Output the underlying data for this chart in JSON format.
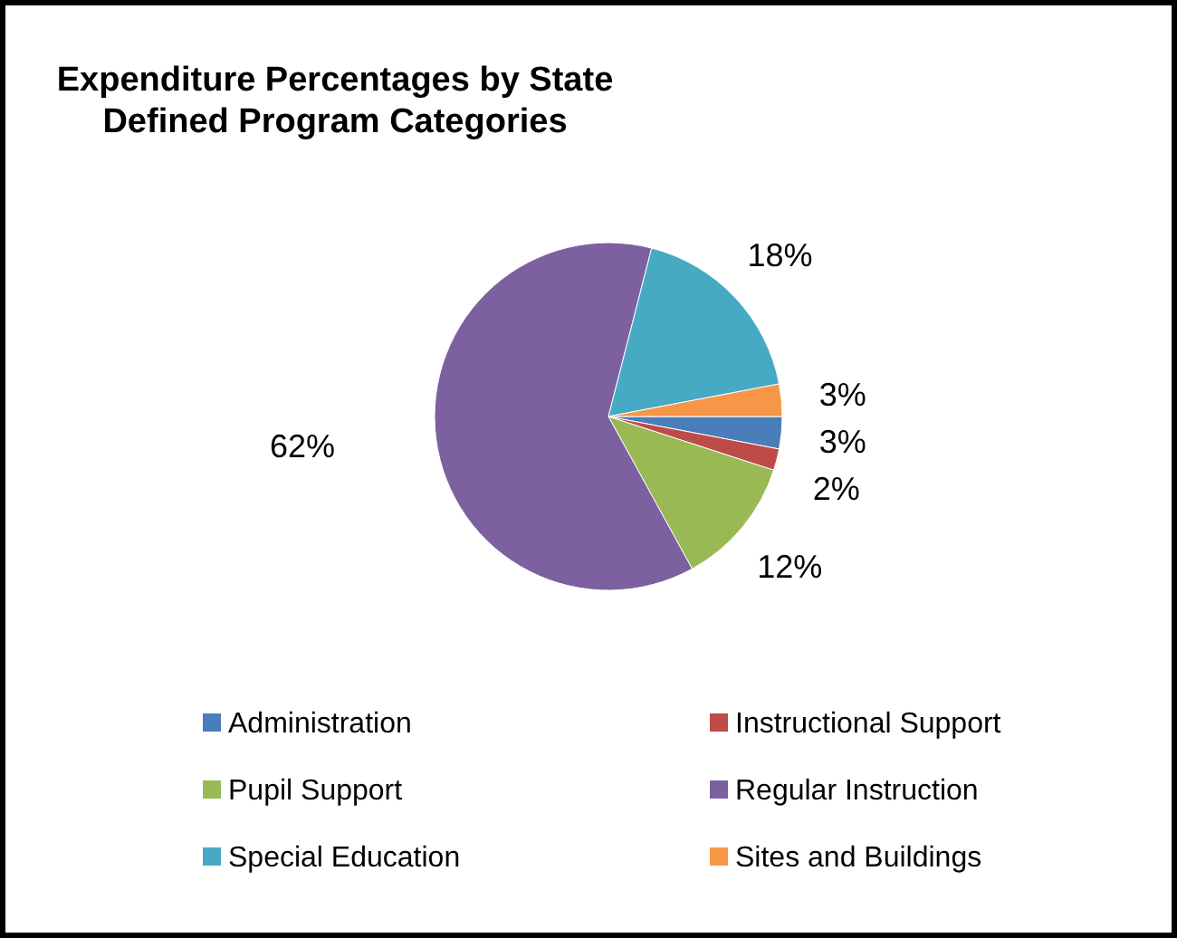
{
  "chart_data": {
    "type": "pie",
    "title": "Expenditure Percentages by State Defined Program Categories",
    "categories": [
      "Administration",
      "Instructional Support",
      "Pupil Support",
      "Regular Instruction",
      "Special Education",
      "Sites and Buildings"
    ],
    "values": [
      3,
      2,
      12,
      62,
      18,
      3
    ],
    "colors": [
      "#4a7ebb",
      "#be4b48",
      "#98b954",
      "#7d60a0",
      "#46aac5",
      "#f79646"
    ],
    "value_labels": [
      "3%",
      "2%",
      "12%",
      "62%",
      "18%",
      "3%"
    ],
    "legend": "bottom"
  }
}
